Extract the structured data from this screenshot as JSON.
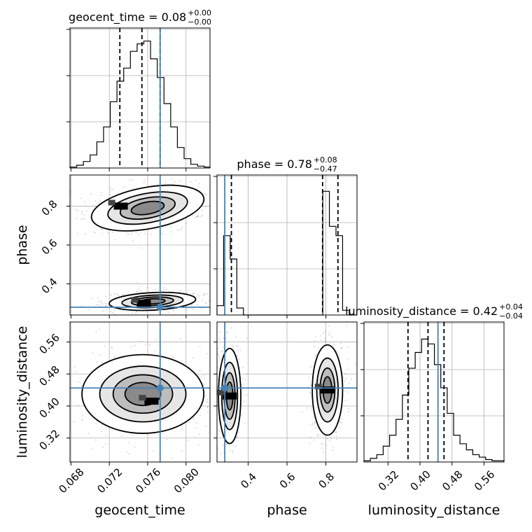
{
  "chart_data": {
    "type": "corner",
    "parameters": [
      "geocent_time",
      "phase",
      "luminosity_distance"
    ],
    "truth": {
      "geocent_time": 0.0773,
      "phase": 0.28,
      "luminosity_distance": 0.445
    },
    "titles": [
      {
        "param": "geocent_time",
        "text": "geocent_time = 0.08",
        "sup": "+0.00",
        "sub": "−0.00"
      },
      {
        "param": "phase",
        "text": "phase = 0.78",
        "sup": "+0.08",
        "sub": "−0.47"
      },
      {
        "param": "luminosity_distance",
        "text": "luminosity_distance = 0.42",
        "sup": "+0.04",
        "sub": "−0.04"
      }
    ],
    "ranges": {
      "geocent_time": [
        0.0679,
        0.0825
      ],
      "phase": [
        0.24,
        0.96
      ],
      "luminosity_distance": [
        0.26,
        0.61
      ]
    },
    "ticks": {
      "geocent_time": {
        "values": [
          0.068,
          0.072,
          0.076,
          0.08
        ],
        "labels": [
          "0.068",
          "0.072",
          "0.076",
          "0.080"
        ]
      },
      "phase_x": {
        "values": [
          0.4,
          0.6,
          0.8
        ],
        "labels": [
          "0.4",
          "0.6",
          "0.8"
        ]
      },
      "phase_y": {
        "values": [
          0.4,
          0.6,
          0.8
        ],
        "labels": [
          "0.4",
          "0.6",
          "0.8"
        ]
      },
      "luminosity_distance": {
        "values": [
          0.32,
          0.4,
          0.48,
          0.56
        ],
        "labels": [
          "0.32",
          "0.40",
          "0.48",
          "0.56"
        ]
      }
    },
    "histograms": {
      "geocent_time": {
        "edges": [
          0.0679,
          0.0686,
          0.0693,
          0.07,
          0.0707,
          0.0714,
          0.0721,
          0.0728,
          0.0735,
          0.0742,
          0.0749,
          0.0756,
          0.0763,
          0.077,
          0.0777,
          0.0784,
          0.0791,
          0.0798,
          0.0805,
          0.0812,
          0.0819,
          0.0825
        ],
        "counts": [
          1,
          3,
          7,
          14,
          28,
          44,
          71,
          93,
          107,
          125,
          133,
          136,
          117,
          97,
          69,
          44,
          22,
          10,
          4,
          2,
          1
        ],
        "quantiles": [
          0.0731,
          0.0754,
          0.0773
        ],
        "ymax": 150
      },
      "phase": {
        "edges": [
          0.24,
          0.274,
          0.308,
          0.342,
          0.376,
          0.41,
          0.444,
          0.478,
          0.512,
          0.546,
          0.58,
          0.614,
          0.648,
          0.682,
          0.716,
          0.75,
          0.784,
          0.818,
          0.852,
          0.886,
          0.92,
          0.96
        ],
        "counts": [
          4,
          34,
          24,
          3,
          0,
          0,
          0,
          0,
          0,
          0,
          0,
          0,
          0,
          0,
          0,
          0,
          53,
          38,
          34,
          2,
          0
        ],
        "quantiles": [
          0.314,
          0.783,
          0.862
        ],
        "ymax": 60
      },
      "luminosity_distance": {
        "edges": [
          0.26,
          0.276,
          0.292,
          0.308,
          0.324,
          0.34,
          0.356,
          0.372,
          0.388,
          0.404,
          0.42,
          0.436,
          0.452,
          0.468,
          0.484,
          0.5,
          0.516,
          0.532,
          0.548,
          0.564,
          0.58,
          0.61
        ],
        "counts": [
          1,
          3,
          6,
          13,
          22,
          35,
          55,
          77,
          90,
          101,
          97,
          80,
          61,
          40,
          22,
          15,
          10,
          6,
          4,
          2,
          1
        ],
        "quantiles": [
          0.37,
          0.42,
          0.46
        ],
        "ymax": 115
      }
    },
    "contours_2d": [
      {
        "x": "geocent_time",
        "y": "phase",
        "blobs": [
          {
            "cx": 0.076,
            "cy": 0.79,
            "sx": 0.0029,
            "sy": 0.052,
            "tilt": -0.18,
            "dense": [
              0.0732,
              0.8
            ]
          },
          {
            "cx": 0.0765,
            "cy": 0.31,
            "sx": 0.0022,
            "sy": 0.022,
            "tilt": -0.05,
            "dense": [
              0.0756,
              0.3
            ]
          }
        ]
      },
      {
        "x": "geocent_time",
        "y": "luminosity_distance",
        "blobs": [
          {
            "cx": 0.0755,
            "cy": 0.43,
            "sx": 0.0031,
            "sy": 0.048,
            "tilt": 0.0,
            "dense": [
              0.0764,
              0.412
            ]
          }
        ]
      },
      {
        "x": "phase",
        "y": "luminosity_distance",
        "blobs": [
          {
            "cx": 0.305,
            "cy": 0.425,
            "sx": 0.028,
            "sy": 0.058,
            "tilt": 0.0,
            "dense": [
              0.305,
              0.425
            ]
          },
          {
            "cx": 0.808,
            "cy": 0.44,
            "sx": 0.038,
            "sy": 0.055,
            "tilt": 0.0,
            "dense": [
              0.808,
              0.44
            ]
          }
        ]
      }
    ]
  }
}
